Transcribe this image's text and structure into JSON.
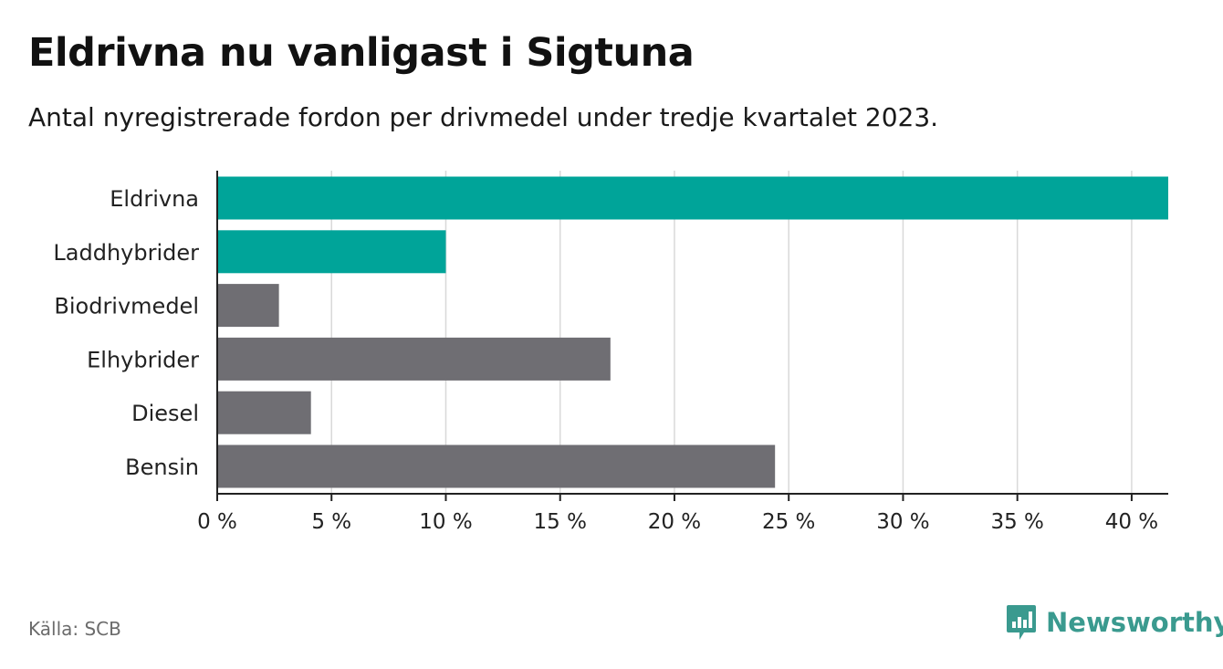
{
  "title": "Eldrivna nu vanligast i Sigtuna",
  "subtitle": "Antal nyregistrerade fordon per drivmedel under tredje kvartalet 2023.",
  "source": "Källa: SCB",
  "brand": {
    "name": "Newsworthy",
    "icon": "newsworthy-logo-icon"
  },
  "colors": {
    "highlight": "#00a499",
    "default": "#6f6e73",
    "grid": "#d9d9d9",
    "axis": "#222222",
    "brand": "#3a9a8f"
  },
  "chart_data": {
    "type": "bar",
    "orientation": "horizontal",
    "categories": [
      "Eldrivna",
      "Laddhybrider",
      "Biodrivmedel",
      "Elhybrider",
      "Diesel",
      "Bensin"
    ],
    "values": [
      41.6,
      10.0,
      2.7,
      17.2,
      4.1,
      24.4
    ],
    "highlighted": [
      true,
      true,
      false,
      false,
      false,
      false
    ],
    "xlim": [
      0,
      41.6
    ],
    "xticks": [
      0,
      5,
      10,
      15,
      20,
      25,
      30,
      35,
      40
    ],
    "xtick_labels": [
      "0 %",
      "5 %",
      "10 %",
      "15 %",
      "20 %",
      "25 %",
      "30 %",
      "35 %",
      "40 %"
    ],
    "grid": true
  }
}
